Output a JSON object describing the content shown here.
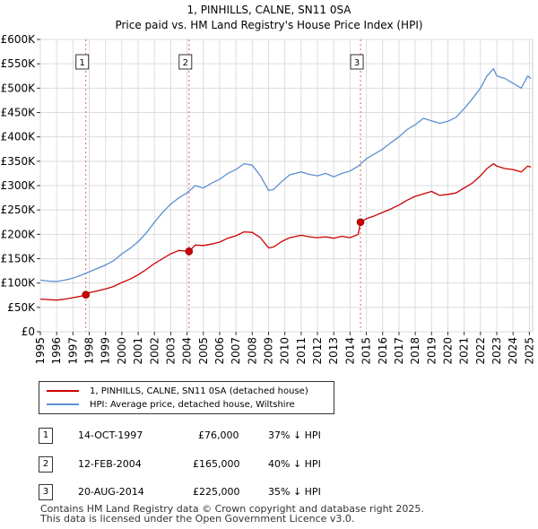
{
  "title_line1": "1, PINHILLS, CALNE, SN11 0SA",
  "title_line2": "Price paid vs. HM Land Registry's House Price Index (HPI)",
  "chart_data": {
    "type": "line",
    "title": "1, PINHILLS, CALNE, SN11 0SA — Price paid vs. HM Land Registry's House Price Index (HPI)",
    "xlabel": "",
    "ylabel": "",
    "xlim": [
      1995,
      2025.2
    ],
    "ylim": [
      0,
      600000
    ],
    "y_ticks": [
      0,
      50000,
      100000,
      150000,
      200000,
      250000,
      300000,
      350000,
      400000,
      450000,
      500000,
      550000,
      600000
    ],
    "y_tick_labels": [
      "£0",
      "£50K",
      "£100K",
      "£150K",
      "£200K",
      "£250K",
      "£300K",
      "£350K",
      "£400K",
      "£450K",
      "£500K",
      "£550K",
      "£600K"
    ],
    "x_ticks": [
      1995,
      1996,
      1997,
      1998,
      1999,
      2000,
      2001,
      2002,
      2003,
      2004,
      2005,
      2006,
      2007,
      2008,
      2009,
      2010,
      2011,
      2012,
      2013,
      2014,
      2015,
      2016,
      2017,
      2018,
      2019,
      2020,
      2021,
      2022,
      2023,
      2024,
      2025
    ],
    "grid": true,
    "series": [
      {
        "name": "1, PINHILLS, CALNE, SN11 0SA (detached house)",
        "color": "#cc0000",
        "x": [
          1995.0,
          1995.5,
          1996.0,
          1996.5,
          1997.0,
          1997.5,
          1997.79,
          1998.0,
          1998.5,
          1999.0,
          1999.5,
          2000.0,
          2000.5,
          2001.0,
          2001.5,
          2002.0,
          2002.5,
          2003.0,
          2003.5,
          2004.12,
          2004.5,
          2005.0,
          2005.5,
          2006.0,
          2006.5,
          2007.0,
          2007.5,
          2008.0,
          2008.5,
          2009.0,
          2009.3,
          2009.8,
          2010.3,
          2011.0,
          2011.5,
          2012.0,
          2012.5,
          2013.0,
          2013.5,
          2014.0,
          2014.5,
          2014.64,
          2015.0,
          2015.5,
          2016.0,
          2016.5,
          2017.0,
          2017.5,
          2018.0,
          2018.5,
          2019.0,
          2019.5,
          2020.0,
          2020.5,
          2021.0,
          2021.5,
          2022.0,
          2022.4,
          2022.8,
          2023.0,
          2023.5,
          2024.0,
          2024.5,
          2024.9,
          2025.1
        ],
        "values": [
          67000,
          66000,
          65000,
          67000,
          70000,
          73000,
          76000,
          80000,
          84000,
          88000,
          93000,
          101000,
          108000,
          117000,
          128000,
          140000,
          150000,
          160000,
          167000,
          165000,
          178000,
          177000,
          180000,
          184000,
          192000,
          197000,
          205000,
          204000,
          193000,
          172000,
          174000,
          185000,
          193000,
          198000,
          195000,
          193000,
          195000,
          192000,
          196000,
          193000,
          200000,
          225000,
          232000,
          238000,
          245000,
          252000,
          260000,
          270000,
          278000,
          283000,
          288000,
          280000,
          282000,
          285000,
          295000,
          305000,
          320000,
          335000,
          345000,
          340000,
          335000,
          333000,
          328000,
          340000,
          338000
        ]
      },
      {
        "name": "HPI: Average price, detached house, Wiltshire",
        "color": "#5b8fd0",
        "x": [
          1995.0,
          1995.5,
          1996.0,
          1996.5,
          1997.0,
          1997.5,
          1998.0,
          1998.5,
          1999.0,
          1999.5,
          2000.0,
          2000.5,
          2001.0,
          2001.5,
          2002.0,
          2002.5,
          2003.0,
          2003.5,
          2004.0,
          2004.5,
          2005.0,
          2005.5,
          2006.0,
          2006.5,
          2007.0,
          2007.5,
          2008.0,
          2008.5,
          2009.0,
          2009.3,
          2009.8,
          2010.3,
          2011.0,
          2011.5,
          2012.0,
          2012.5,
          2013.0,
          2013.5,
          2014.0,
          2014.5,
          2015.0,
          2015.5,
          2016.0,
          2016.5,
          2017.0,
          2017.5,
          2018.0,
          2018.5,
          2019.0,
          2019.5,
          2020.0,
          2020.5,
          2021.0,
          2021.5,
          2022.0,
          2022.4,
          2022.8,
          2023.0,
          2023.5,
          2024.0,
          2024.5,
          2024.9,
          2025.1
        ],
        "values": [
          106000,
          104000,
          103000,
          106000,
          110000,
          116000,
          123000,
          130000,
          137000,
          146000,
          160000,
          171000,
          185000,
          203000,
          225000,
          245000,
          262000,
          275000,
          285000,
          300000,
          295000,
          305000,
          313000,
          325000,
          333000,
          345000,
          342000,
          320000,
          290000,
          292000,
          308000,
          322000,
          328000,
          323000,
          320000,
          325000,
          318000,
          325000,
          330000,
          340000,
          355000,
          365000,
          375000,
          388000,
          400000,
          415000,
          425000,
          438000,
          433000,
          428000,
          432000,
          440000,
          458000,
          478000,
          500000,
          525000,
          540000,
          525000,
          520000,
          510000,
          500000,
          525000,
          520000
        ]
      }
    ],
    "sales": [
      {
        "label": "1",
        "x": 1997.79,
        "price": 76000
      },
      {
        "label": "2",
        "x": 2004.12,
        "price": 165000
      },
      {
        "label": "3",
        "x": 2014.64,
        "price": 225000
      }
    ]
  },
  "legend": {
    "item1": "1, PINHILLS, CALNE, SN11 0SA (detached house)",
    "item2": "HPI: Average price, detached house, Wiltshire"
  },
  "sales_table": [
    {
      "num": "1",
      "date": "14-OCT-1997",
      "price": "£76,000",
      "hpi": "37% ↓ HPI"
    },
    {
      "num": "2",
      "date": "12-FEB-2004",
      "price": "£165,000",
      "hpi": "40% ↓ HPI"
    },
    {
      "num": "3",
      "date": "20-AUG-2014",
      "price": "£225,000",
      "hpi": "35% ↓ HPI"
    }
  ],
  "footer": {
    "line1": "Contains HM Land Registry data © Crown copyright and database right 2025.",
    "line2": "This data is licensed under the Open Government Licence v3.0."
  },
  "colors": {
    "price_line": "#cc0000",
    "hpi_line": "#5b8fd0",
    "grid": "#dddddd",
    "vline": "#e06060"
  }
}
